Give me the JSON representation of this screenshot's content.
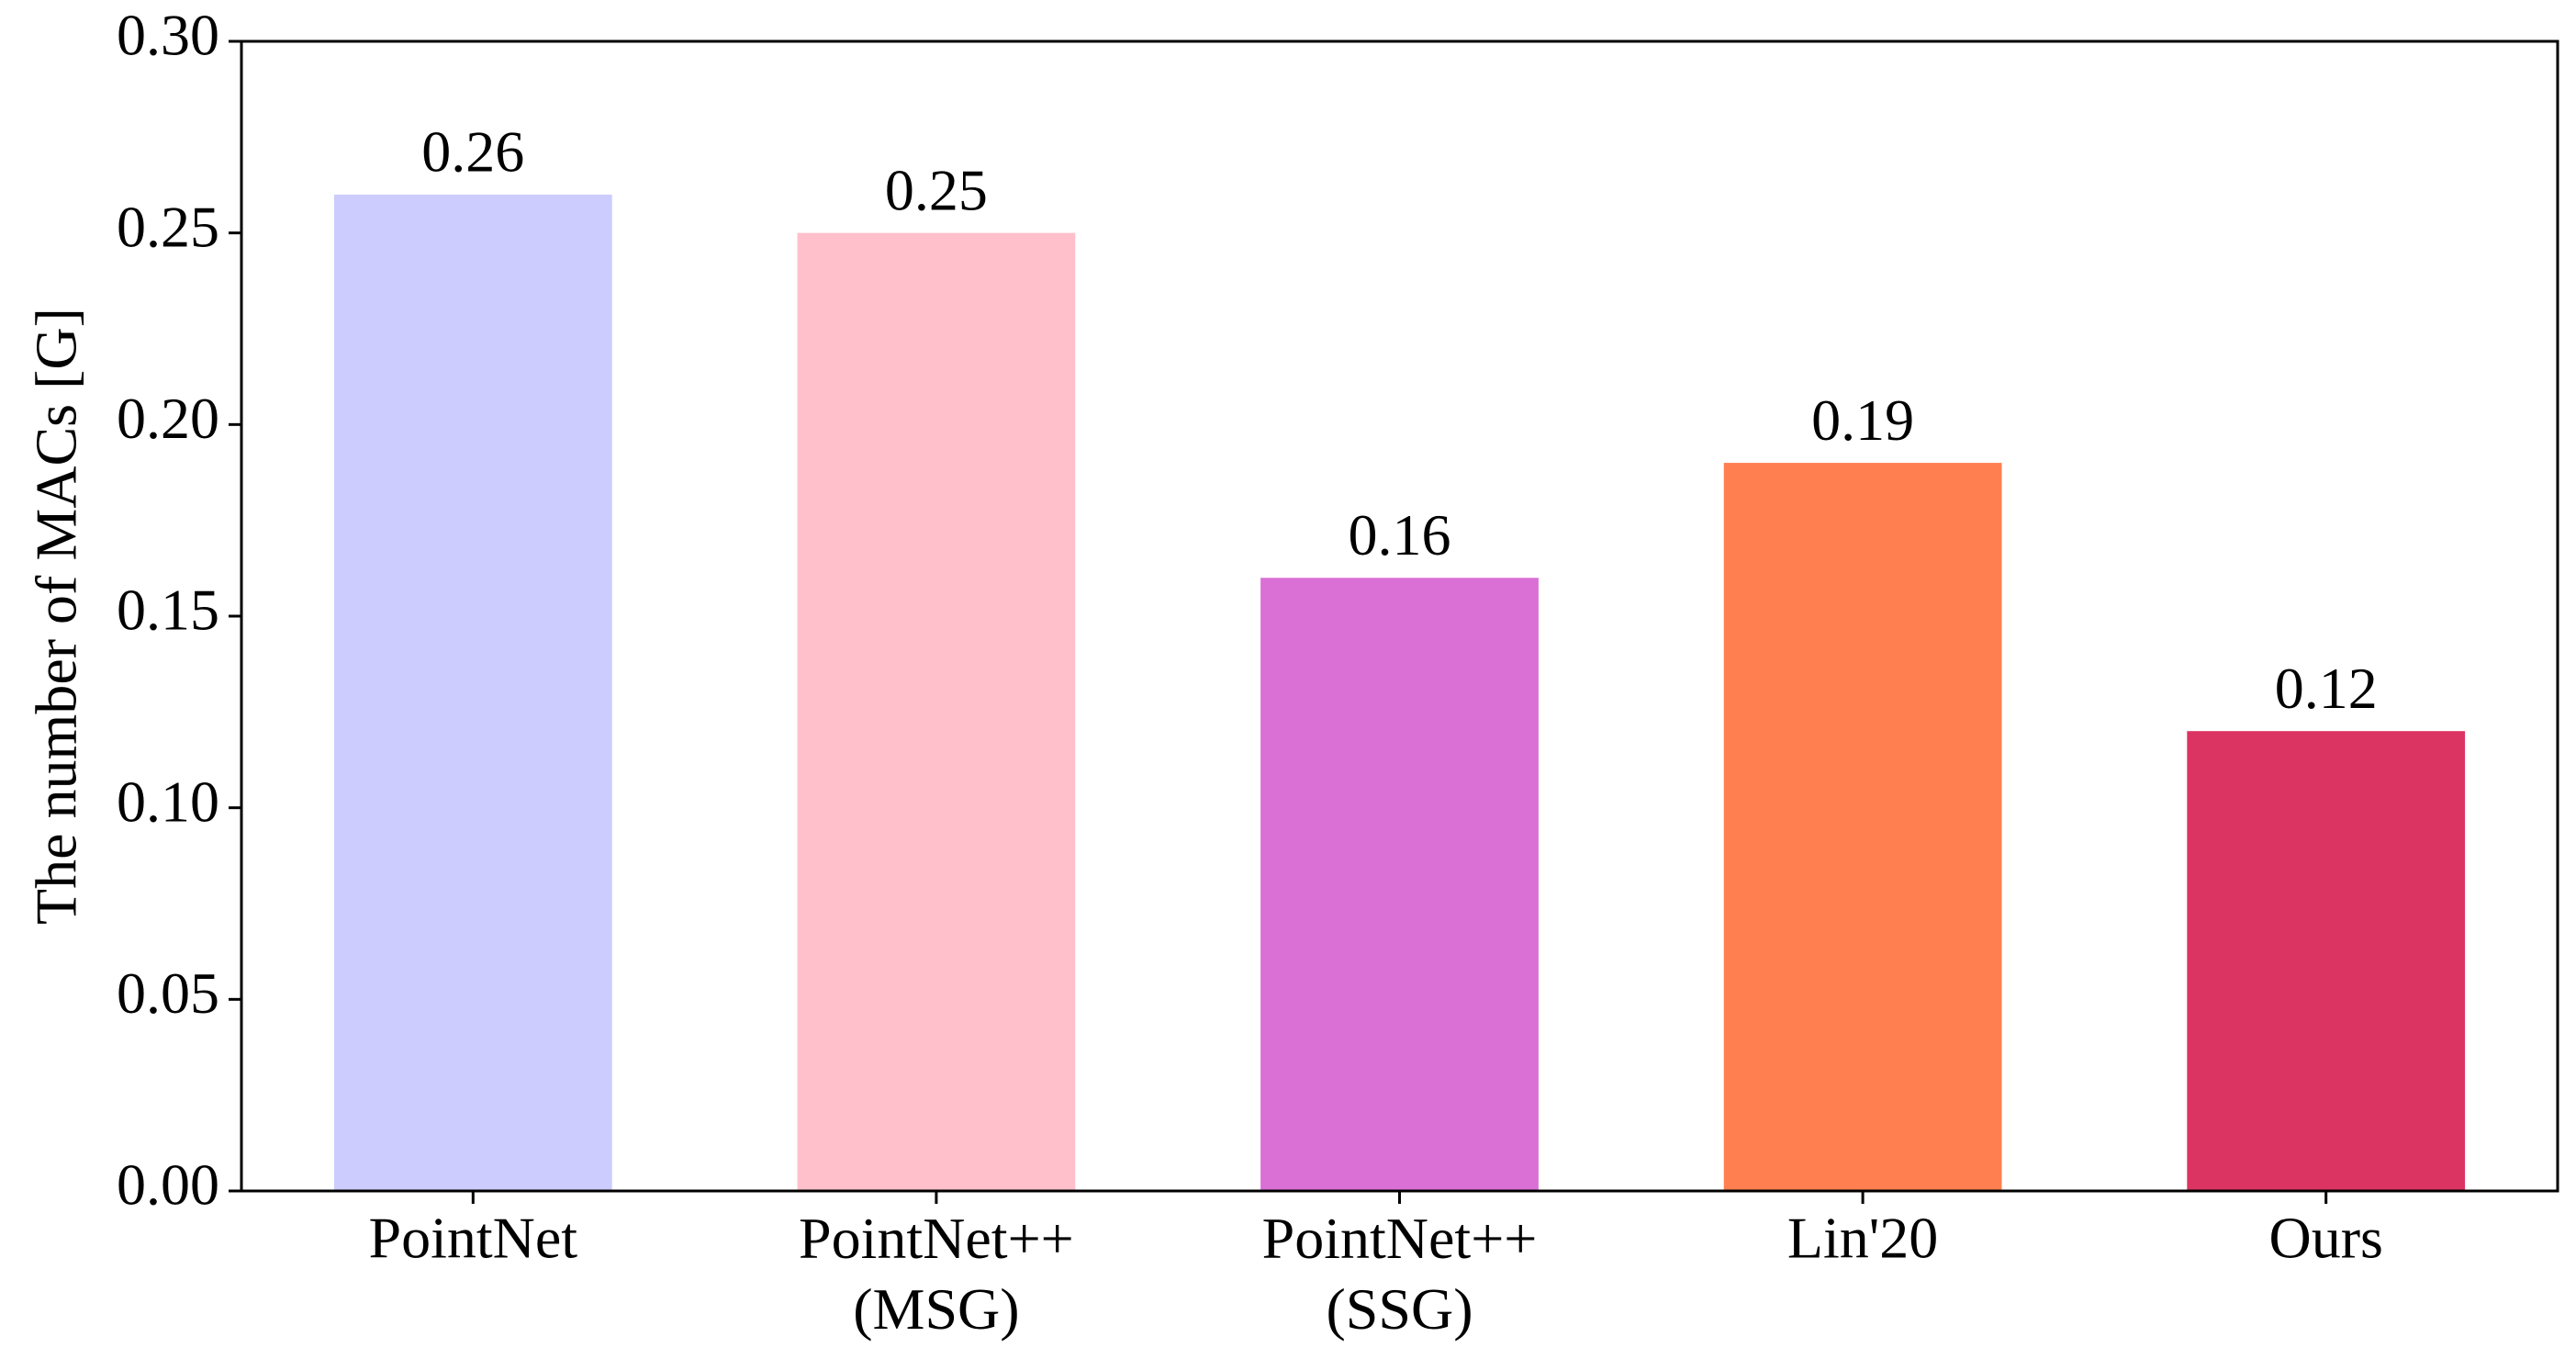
{
  "chart_data": {
    "type": "bar",
    "y_label": "The number of MACs [G]",
    "categories": [
      "PointNet",
      "PointNet++\n(MSG)",
      "PointNet++\n(SSG)",
      "Lin'20",
      "Ours"
    ],
    "values": [
      0.26,
      0.25,
      0.16,
      0.19,
      0.12
    ],
    "colors": [
      "#ccccff",
      "#ffc0cb",
      "#da70d6",
      "#ff7f50",
      "#dc3462"
    ],
    "ylim": [
      0,
      0.3
    ],
    "yticks": [
      {
        "value": 0,
        "label": "0.00"
      },
      {
        "value": 0.05,
        "label": "0.05"
      },
      {
        "value": 0.1,
        "label": "0.10"
      },
      {
        "value": 0.15,
        "label": "0.15"
      },
      {
        "value": 0.2,
        "label": "0.20"
      },
      {
        "value": 0.25,
        "label": "0.25"
      },
      {
        "value": 0.3,
        "label": "0.30"
      }
    ],
    "grid": false
  }
}
